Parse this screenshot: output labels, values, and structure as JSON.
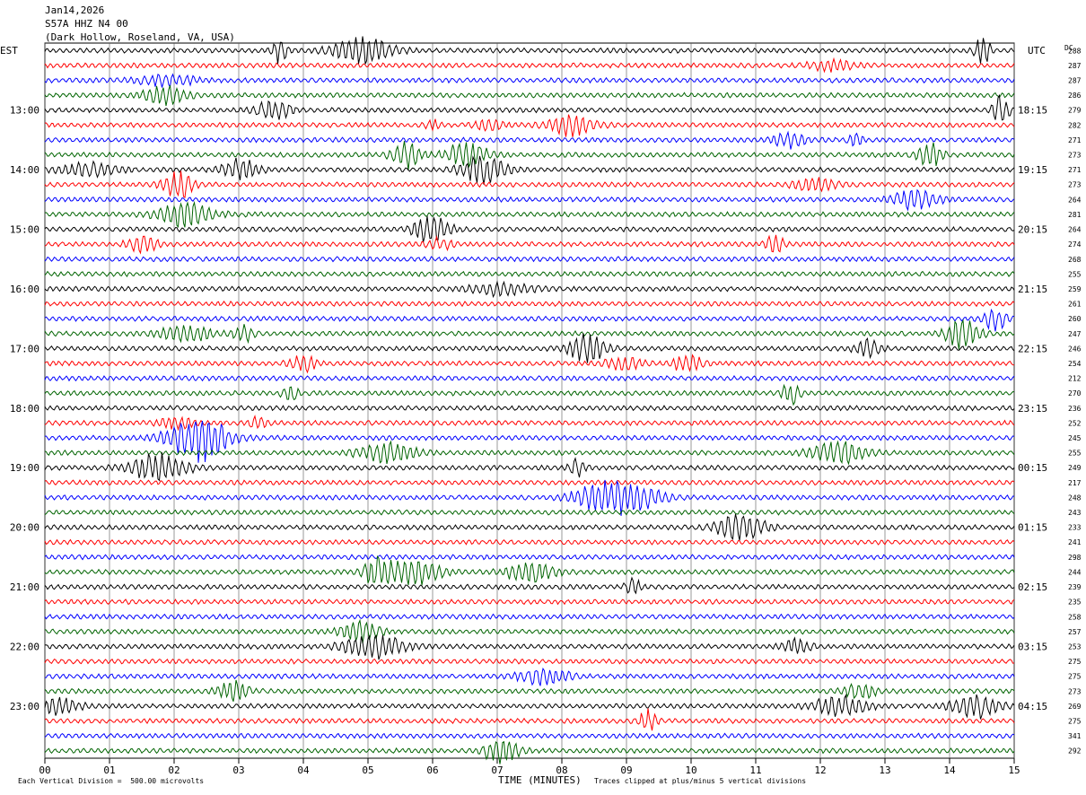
{
  "header": {
    "date": "Jan14,2026",
    "station": "S57A HHZ N4 00",
    "location": "(Dark Hollow, Roseland, VA, USA)"
  },
  "left_tz": "EST",
  "right_tz": "UTC",
  "dc_header": "DC",
  "footer": {
    "scale": "Each Vertical Division =  500.00 microvolts",
    "xlabel": "TIME (MINUTES)",
    "clip_note": "Traces clipped at plus/minus 5 vertical divisions"
  },
  "chart_data": {
    "type": "line",
    "title": "",
    "xlabel": "TIME (MINUTES)",
    "ylabel": "",
    "xlim": [
      0,
      15
    ],
    "x_ticks": [
      "00",
      "01",
      "02",
      "03",
      "04",
      "05",
      "06",
      "07",
      "08",
      "09",
      "10",
      "11",
      "12",
      "13",
      "14",
      "15"
    ],
    "trace_colors": [
      "#000000",
      "#ff0000",
      "#0000ff",
      "#006400"
    ],
    "left_time_labels": [
      "13:00",
      "14:00",
      "15:00",
      "16:00",
      "17:00",
      "18:00",
      "19:00",
      "20:00",
      "21:00",
      "22:00",
      "23:00"
    ],
    "right_time_labels": [
      "18:15",
      "19:15",
      "20:15",
      "21:15",
      "22:15",
      "23:15",
      "00:15",
      "01:15",
      "02:15",
      "03:15",
      "04:15"
    ],
    "dc_values": [
      "288",
      "287",
      "287",
      "286",
      "279",
      "282",
      "271",
      "273",
      "271",
      "273",
      "264",
      "281",
      "264",
      "274",
      "268",
      "255",
      "259",
      "261",
      "260",
      "247",
      "246",
      "254",
      "212",
      "270",
      "236",
      "252",
      "245",
      "255",
      "249",
      "217",
      "248",
      "243",
      "233",
      "241",
      "298",
      "244",
      "239",
      "235",
      "258",
      "257",
      "253",
      "275",
      "275",
      "273",
      "269",
      "275",
      "341",
      "292"
    ],
    "grid": true
  }
}
